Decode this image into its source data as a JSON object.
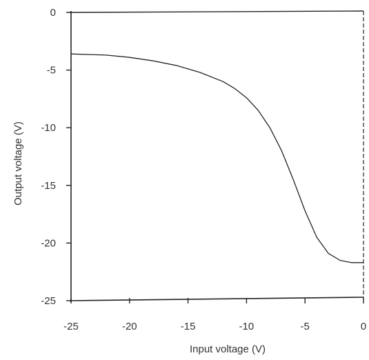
{
  "chart_data": {
    "type": "line",
    "title": "",
    "xlabel": "Input voltage (V)",
    "ylabel": "Output voltage (V)",
    "xlim": [
      -25,
      0
    ],
    "ylim": [
      -25,
      0
    ],
    "xticks": [
      -25,
      -20,
      -15,
      -10,
      -5,
      0
    ],
    "yticks": [
      0,
      -5,
      -10,
      -15,
      -20,
      -25
    ],
    "xtick_labels": [
      "-25",
      "-20",
      "-15",
      "-10",
      "-5",
      "0"
    ],
    "ytick_labels": [
      "0",
      "-5",
      "-10",
      "-15",
      "-20",
      "-25"
    ],
    "grid": false,
    "legend": "none",
    "series": [
      {
        "x": [
          -25,
          -22,
          -20,
          -18,
          -16,
          -14,
          -12,
          -11,
          -10,
          -9,
          -8,
          -7,
          -6,
          -5,
          -4,
          -3,
          -2,
          -1.5,
          -1,
          -0.5,
          0
        ],
        "y": [
          -3.6,
          -3.7,
          -3.9,
          -4.2,
          -4.6,
          -5.2,
          -6.0,
          -6.6,
          -7.4,
          -8.5,
          -10.0,
          -12.0,
          -14.5,
          -17.2,
          -19.5,
          -20.9,
          -21.5,
          -21.6,
          -21.7,
          -21.7,
          -21.7
        ]
      }
    ],
    "colors": {
      "line": "#222222",
      "axis": "#222222",
      "text": "#333333",
      "background": "#ffffff"
    }
  }
}
